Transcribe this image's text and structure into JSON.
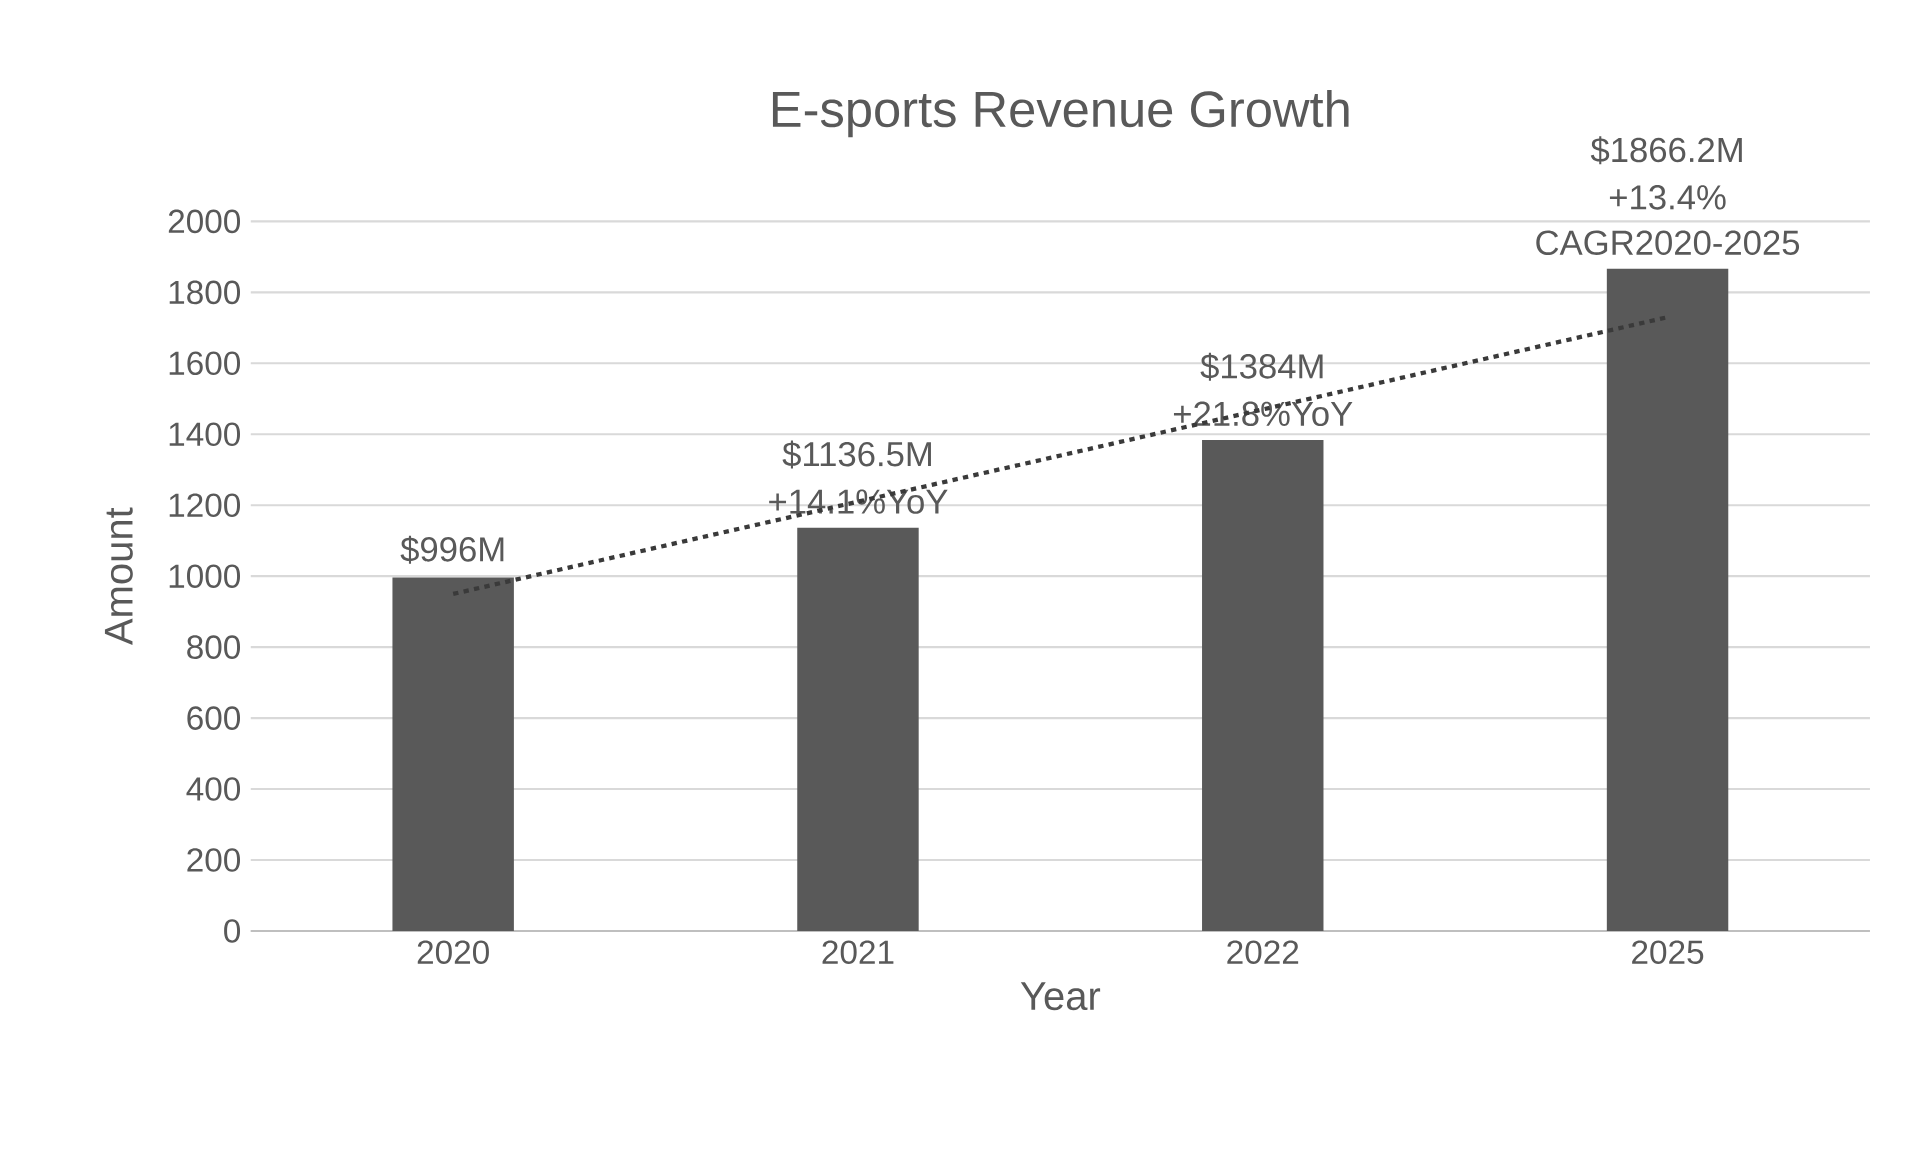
{
  "chart_data": {
    "type": "bar",
    "title": "E-sports Revenue Growth",
    "xlabel": "Year",
    "ylabel": "Amount",
    "categories": [
      "2020",
      "2021",
      "2022",
      "2025"
    ],
    "series": [
      {
        "color": "#595959",
        "values": [
          996,
          1136.5,
          1384,
          1866.2
        ],
        "value_labels": [
          "$996M",
          "$1136.5M",
          "$1384M",
          "$1866.2M"
        ]
      },
      {
        "type": "line",
        "color": "#3a3a3a",
        "line_style": "dotted",
        "values": [
          950,
          1210,
          1470,
          1730
        ]
      }
    ],
    "annotations": [
      {
        "text": "+14.1%YoY",
        "x": "2021",
        "y": 1136.5
      },
      {
        "text": "+21.8%YoY",
        "x": "2022",
        "y": 1384
      },
      {
        "text": "+13.4%",
        "x": "2025",
        "y": 1866.2
      },
      {
        "text": "CAGR2020-2025",
        "x": "2025",
        "y": 1866.2
      }
    ],
    "ylim": [
      0,
      2000
    ],
    "yticks": [
      0,
      200,
      400,
      600,
      800,
      1000,
      1200,
      1400,
      1600,
      1800,
      2000
    ],
    "grid": "y"
  }
}
